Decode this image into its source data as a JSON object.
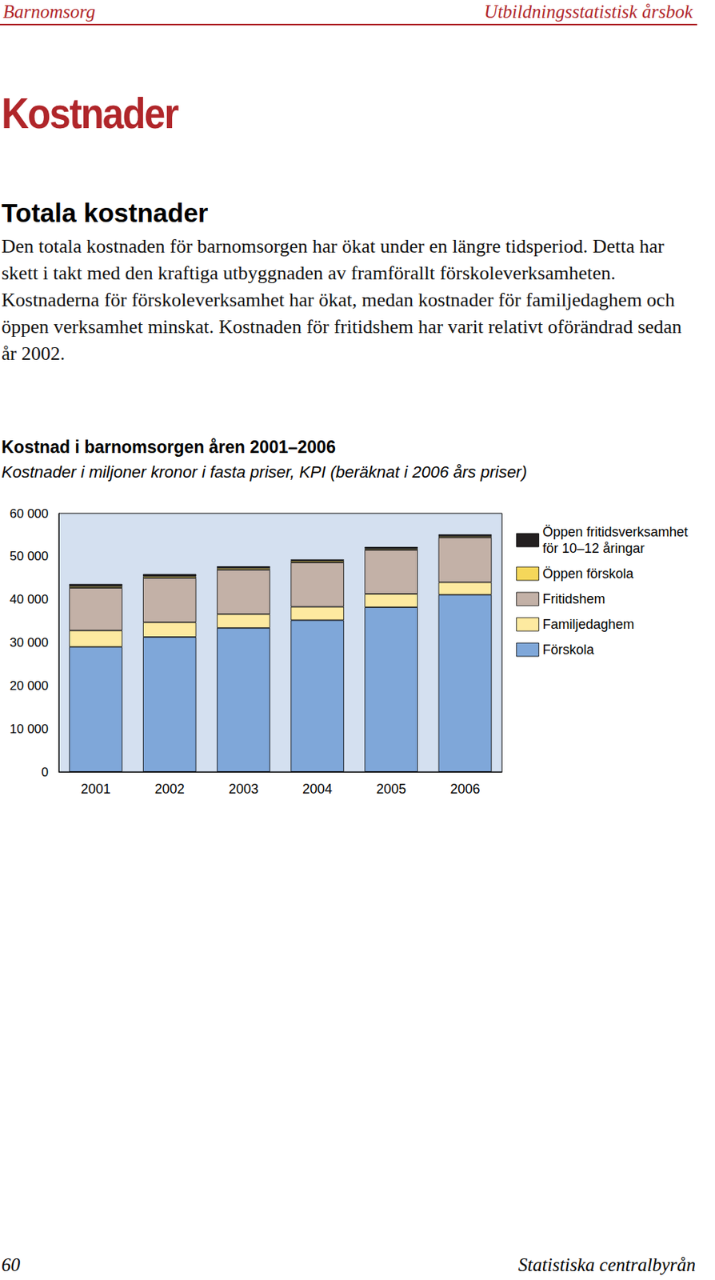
{
  "header": {
    "left": "Barnomsorg",
    "right": "Utbildningsstatistisk årsbok"
  },
  "title": "Kostnader",
  "section": "Totala kostnader",
  "paragraph": "Den totala kostnaden för barnomsorgen har ökat under en längre tidsperiod. Detta har skett i takt med den kraftiga utbyggnaden av framförallt förskoleverksamheten. Kostnaderna för förskoleverksamhet har ökat, medan kostnader för familjedaghem och öppen verksamhet minskat. Kostnaden för fritidshem har varit relativt oförändrad sedan år 2002.",
  "chart_data": {
    "type": "bar",
    "stacked": true,
    "title": "Kostnad i barnomsorgen åren 2001–2006",
    "subtitle": "Kostnader i miljoner kronor i fasta priser, KPI (beräknat i 2006 års priser)",
    "categories": [
      "2001",
      "2002",
      "2003",
      "2004",
      "2005",
      "2006"
    ],
    "series": [
      {
        "name": "Förskola",
        "color": "#7fa7d9",
        "values": [
          29000,
          31300,
          33400,
          35200,
          38200,
          41100
        ]
      },
      {
        "name": "Familjedaghem",
        "color": "#fdeaa0",
        "values": [
          3800,
          3400,
          3200,
          3100,
          3100,
          2900
        ]
      },
      {
        "name": "Fritidshem",
        "color": "#c3b1a7",
        "values": [
          9900,
          10300,
          10300,
          10300,
          10200,
          10400
        ]
      },
      {
        "name": "Öppen förskola",
        "color": "#f5d75a",
        "values": [
          400,
          400,
          400,
          400,
          300,
          300
        ]
      },
      {
        "name": "Öppen fritidsverksamhet för 10–12 åringar",
        "color": "#231f20",
        "values": [
          500,
          500,
          400,
          300,
          400,
          400
        ]
      }
    ],
    "ylim": [
      0,
      60000
    ],
    "yticks": [
      0,
      {
        "value": 10000,
        "label": "10 000"
      },
      {
        "value": 20000,
        "label": "20 000"
      },
      {
        "value": 30000,
        "label": "30 000"
      },
      {
        "value": 40000,
        "label": "40 000"
      },
      {
        "value": 50000,
        "label": "50 000"
      },
      {
        "value": 60000,
        "label": "60 000"
      }
    ],
    "grid": false,
    "legend": "right"
  },
  "footer": {
    "page": "60",
    "publisher": "Statistiska centralbyrån"
  }
}
